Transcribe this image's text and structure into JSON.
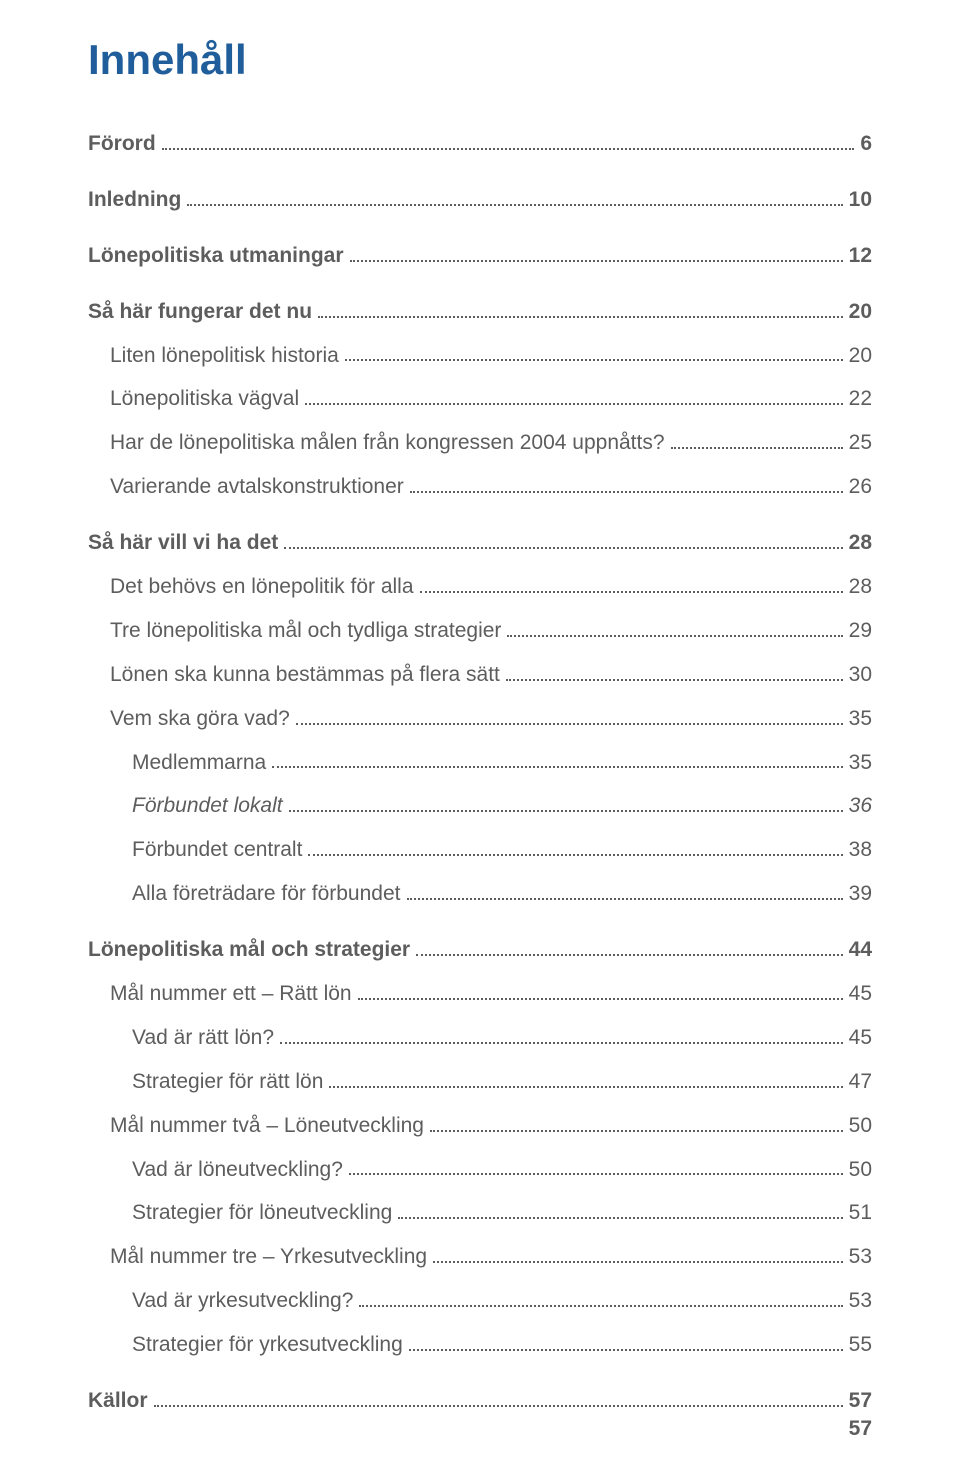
{
  "title": "Innehåll",
  "page_number": "57",
  "colors": {
    "title": "#1f5d9b",
    "text": "#5d5d5d",
    "leader": "#5d5d5d",
    "background": "#ffffff"
  },
  "typography": {
    "title_fontsize_pt": 32,
    "body_fontsize_pt": 16,
    "title_weight": 600,
    "bold_weight": 700
  },
  "toc": [
    {
      "label": "Förord",
      "page": "6",
      "level": 0,
      "bold": true
    },
    {
      "label": "Inledning",
      "page": "10",
      "level": 0,
      "bold": true
    },
    {
      "label": "Lönepolitiska utmaningar",
      "page": "12",
      "level": 0,
      "bold": true
    },
    {
      "label": "Så här fungerar det nu",
      "page": "20",
      "level": 0,
      "bold": true
    },
    {
      "label": "Liten lönepolitisk historia",
      "page": "20",
      "level": 1
    },
    {
      "label": "Lönepolitiska vägval",
      "page": "22",
      "level": 1
    },
    {
      "label": "Har de lönepolitiska målen från kongressen 2004 uppnåtts?",
      "page": "25",
      "level": 1
    },
    {
      "label": "Varierande avtalskonstruktioner",
      "page": "26",
      "level": 1
    },
    {
      "label": "Så här vill vi ha det",
      "page": "28",
      "level": 0,
      "bold": true
    },
    {
      "label": "Det behövs en lönepolitik för alla",
      "page": "28",
      "level": 1
    },
    {
      "label": "Tre lönepolitiska mål och tydliga strategier",
      "page": "29",
      "level": 1
    },
    {
      "label": "Lönen ska kunna bestämmas på flera sätt",
      "page": "30",
      "level": 1
    },
    {
      "label": "Vem ska göra vad?",
      "page": "35",
      "level": 1
    },
    {
      "label": "Medlemmarna",
      "page": "35",
      "level": 2
    },
    {
      "label": "Förbundet lokalt",
      "page": "36",
      "level": 2,
      "italic": true
    },
    {
      "label": "Förbundet centralt",
      "page": "38",
      "level": 2
    },
    {
      "label": "Alla företrädare för förbundet",
      "page": "39",
      "level": 2
    },
    {
      "label": "Lönepolitiska mål och strategier",
      "page": "44",
      "level": 0,
      "bold": true
    },
    {
      "label": "Mål nummer ett – Rätt lön",
      "page": "45",
      "level": 1
    },
    {
      "label": "Vad är rätt lön?",
      "page": "45",
      "level": 2
    },
    {
      "label": "Strategier för rätt lön",
      "page": "47",
      "level": 2
    },
    {
      "label": "Mål nummer två – Löneutveckling",
      "page": "50",
      "level": 1
    },
    {
      "label": "Vad är löneutveckling?",
      "page": "50",
      "level": 2
    },
    {
      "label": "Strategier för löneutveckling",
      "page": "51",
      "level": 2
    },
    {
      "label": "Mål nummer tre – Yrkesutveckling",
      "page": "53",
      "level": 1
    },
    {
      "label": "Vad är yrkesutveckling?",
      "page": "53",
      "level": 2
    },
    {
      "label": "Strategier för yrkesutveckling",
      "page": "55",
      "level": 2
    },
    {
      "label": "Källor",
      "page": "57",
      "level": 0,
      "bold": true
    }
  ]
}
